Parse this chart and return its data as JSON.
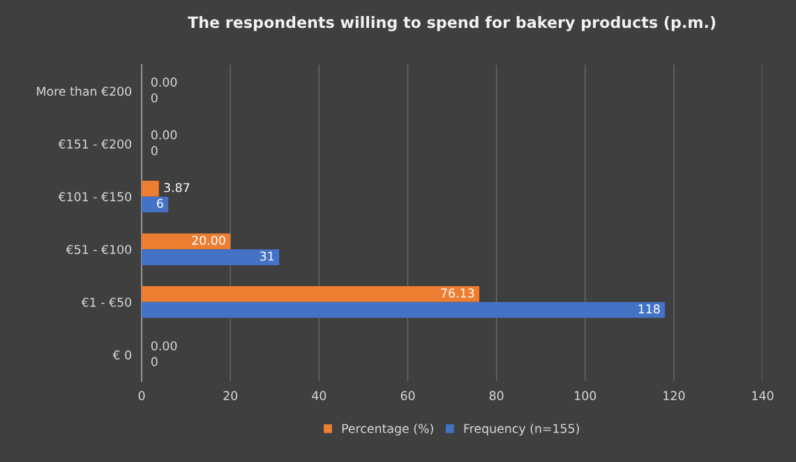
{
  "chart_data": {
    "type": "bar",
    "orientation": "horizontal",
    "title": "The respondents willing to spend for bakery products (p.m.)",
    "categories": [
      "More than €200",
      "€151 - €200",
      "€101 - €150",
      "€51 - €100",
      "€1 - €50",
      "€ 0"
    ],
    "series": [
      {
        "name": "Percentage (%)",
        "color": "#ed7d31",
        "values": [
          0,
          0,
          3.87,
          20,
          76.13,
          0
        ],
        "value_labels": [
          "0.00",
          "0.00",
          "3.87",
          "20.00",
          "76.13",
          "0.00"
        ]
      },
      {
        "name": "Frequency (n=155)",
        "color": "#4472c4",
        "values": [
          0,
          0,
          6,
          31,
          118,
          0
        ],
        "value_labels": [
          "0",
          "0",
          "6",
          "31",
          "118",
          "0"
        ]
      }
    ],
    "xlim": [
      0,
      140
    ],
    "xticks": [
      0,
      20,
      40,
      60,
      80,
      100,
      120,
      140
    ],
    "grid": "x",
    "legend": "bottom"
  }
}
